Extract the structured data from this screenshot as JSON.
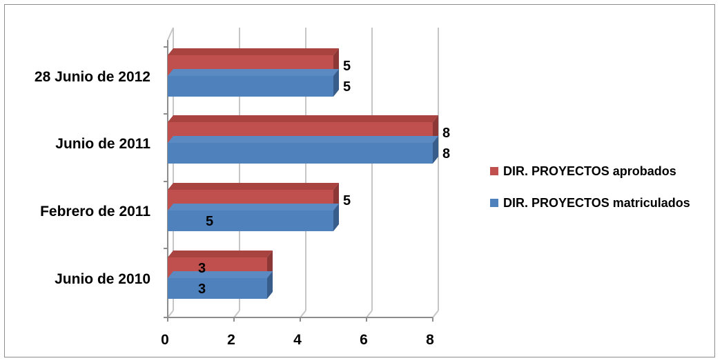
{
  "chart_data": {
    "type": "bar",
    "orientation": "horizontal",
    "style": "3d-clustered",
    "categories": [
      "Junio de 2010",
      "Febrero de 2011",
      "Junio de 2011",
      "28 Junio de 2012"
    ],
    "series": [
      {
        "name": "DIR. PROYECTOS matriculados",
        "values": [
          3,
          5,
          8,
          5
        ],
        "color": "#4f81bd",
        "side_color": "#385d8a",
        "top_color": "#5b89c2"
      },
      {
        "name": "DIR. PROYECTOS aprobados",
        "values": [
          3,
          5,
          8,
          5
        ],
        "color": "#c0504d",
        "side_color": "#8c3836",
        "top_color": "#a84340"
      }
    ],
    "xlim": [
      0,
      8
    ],
    "xticks": [
      0,
      2,
      4,
      6,
      8
    ],
    "tick_labels": [
      "0",
      "2",
      "4",
      "6",
      "8"
    ],
    "grid": true,
    "legend_position": "right",
    "title": "",
    "xlabel": "",
    "ylabel": ""
  }
}
